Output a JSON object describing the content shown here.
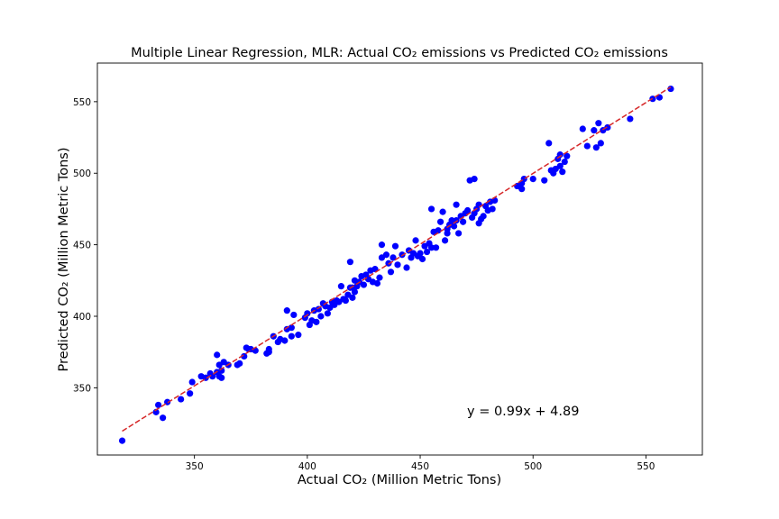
{
  "chart_data": {
    "type": "scatter",
    "title": "Multiple Linear Regression, MLR: Actual CO₂ emissions vs Predicted CO₂ emissions",
    "xlabel": "Actual CO₂ (Million Metric Tons)",
    "ylabel": "Predicted CO₂ (Million Metric Tons)",
    "xlim": [
      307,
      575
    ],
    "ylim": [
      303,
      577
    ],
    "xticks": [
      350,
      400,
      450,
      500,
      550
    ],
    "yticks": [
      350,
      400,
      450,
      500,
      550
    ],
    "grid": false,
    "legend": "none",
    "annotation": "y = 0.99x + 4.89",
    "fit_line": {
      "slope": 0.99,
      "intercept": 4.89,
      "x_range": [
        318,
        561
      ],
      "color": "#d62728",
      "style": "dashed"
    },
    "point_color": "#0000ff",
    "points": [
      [
        318,
        313
      ],
      [
        333,
        333
      ],
      [
        334,
        338
      ],
      [
        336,
        329
      ],
      [
        338,
        340
      ],
      [
        344,
        342
      ],
      [
        348,
        346
      ],
      [
        349,
        354
      ],
      [
        353,
        358
      ],
      [
        355,
        357
      ],
      [
        357,
        360
      ],
      [
        358,
        358
      ],
      [
        360,
        373
      ],
      [
        360,
        361
      ],
      [
        361,
        358
      ],
      [
        361,
        366
      ],
      [
        362,
        357
      ],
      [
        362,
        362
      ],
      [
        363,
        368
      ],
      [
        365,
        366
      ],
      [
        369,
        366
      ],
      [
        370,
        367
      ],
      [
        372,
        372
      ],
      [
        373,
        378
      ],
      [
        374,
        377
      ],
      [
        375,
        377
      ],
      [
        377,
        376
      ],
      [
        382,
        374
      ],
      [
        383,
        375
      ],
      [
        383,
        377
      ],
      [
        385,
        386
      ],
      [
        387,
        382
      ],
      [
        388,
        384
      ],
      [
        390,
        383
      ],
      [
        391,
        404
      ],
      [
        391,
        391
      ],
      [
        393,
        392
      ],
      [
        393,
        386
      ],
      [
        394,
        401
      ],
      [
        396,
        387
      ],
      [
        399,
        399
      ],
      [
        400,
        402
      ],
      [
        401,
        394
      ],
      [
        402,
        397
      ],
      [
        403,
        404
      ],
      [
        404,
        396
      ],
      [
        405,
        405
      ],
      [
        406,
        400
      ],
      [
        407,
        409
      ],
      [
        408,
        407
      ],
      [
        409,
        402
      ],
      [
        410,
        406
      ],
      [
        411,
        410
      ],
      [
        412,
        408
      ],
      [
        413,
        411
      ],
      [
        414,
        410
      ],
      [
        415,
        421
      ],
      [
        416,
        412
      ],
      [
        417,
        411
      ],
      [
        418,
        415
      ],
      [
        419,
        420
      ],
      [
        419,
        438
      ],
      [
        420,
        413
      ],
      [
        420,
        420
      ],
      [
        421,
        425
      ],
      [
        421,
        417
      ],
      [
        422,
        421
      ],
      [
        423,
        424
      ],
      [
        424,
        428
      ],
      [
        425,
        422
      ],
      [
        426,
        429
      ],
      [
        427,
        426
      ],
      [
        428,
        432
      ],
      [
        429,
        424
      ],
      [
        430,
        433
      ],
      [
        431,
        423
      ],
      [
        432,
        427
      ],
      [
        433,
        441
      ],
      [
        433,
        450
      ],
      [
        435,
        443
      ],
      [
        436,
        437
      ],
      [
        437,
        431
      ],
      [
        438,
        441
      ],
      [
        439,
        449
      ],
      [
        440,
        436
      ],
      [
        442,
        443
      ],
      [
        444,
        434
      ],
      [
        445,
        446
      ],
      [
        446,
        441
      ],
      [
        447,
        444
      ],
      [
        448,
        453
      ],
      [
        449,
        442
      ],
      [
        450,
        444
      ],
      [
        451,
        440
      ],
      [
        452,
        449
      ],
      [
        453,
        445
      ],
      [
        454,
        451
      ],
      [
        455,
        448
      ],
      [
        455,
        475
      ],
      [
        456,
        459
      ],
      [
        457,
        448
      ],
      [
        458,
        460
      ],
      [
        459,
        466
      ],
      [
        460,
        473
      ],
      [
        461,
        453
      ],
      [
        462,
        461
      ],
      [
        462,
        458
      ],
      [
        463,
        464
      ],
      [
        464,
        467
      ],
      [
        465,
        463
      ],
      [
        466,
        478
      ],
      [
        466,
        467
      ],
      [
        467,
        458
      ],
      [
        468,
        470
      ],
      [
        469,
        466
      ],
      [
        470,
        472
      ],
      [
        471,
        474
      ],
      [
        472,
        495
      ],
      [
        473,
        469
      ],
      [
        474,
        472
      ],
      [
        474,
        496
      ],
      [
        475,
        475
      ],
      [
        476,
        478
      ],
      [
        476,
        465
      ],
      [
        477,
        468
      ],
      [
        478,
        470
      ],
      [
        479,
        477
      ],
      [
        480,
        474
      ],
      [
        481,
        480
      ],
      [
        482,
        475
      ],
      [
        483,
        481
      ],
      [
        493,
        491
      ],
      [
        495,
        489
      ],
      [
        495,
        493
      ],
      [
        496,
        496
      ],
      [
        500,
        496
      ],
      [
        505,
        495
      ],
      [
        507,
        521
      ],
      [
        508,
        502
      ],
      [
        509,
        500
      ],
      [
        510,
        503
      ],
      [
        511,
        510
      ],
      [
        512,
        513
      ],
      [
        512,
        505
      ],
      [
        513,
        501
      ],
      [
        514,
        508
      ],
      [
        515,
        512
      ],
      [
        522,
        531
      ],
      [
        524,
        519
      ],
      [
        527,
        530
      ],
      [
        528,
        518
      ],
      [
        529,
        535
      ],
      [
        530,
        521
      ],
      [
        531,
        530
      ],
      [
        533,
        532
      ],
      [
        543,
        538
      ],
      [
        553,
        552
      ],
      [
        556,
        553
      ],
      [
        561,
        559
      ]
    ]
  }
}
